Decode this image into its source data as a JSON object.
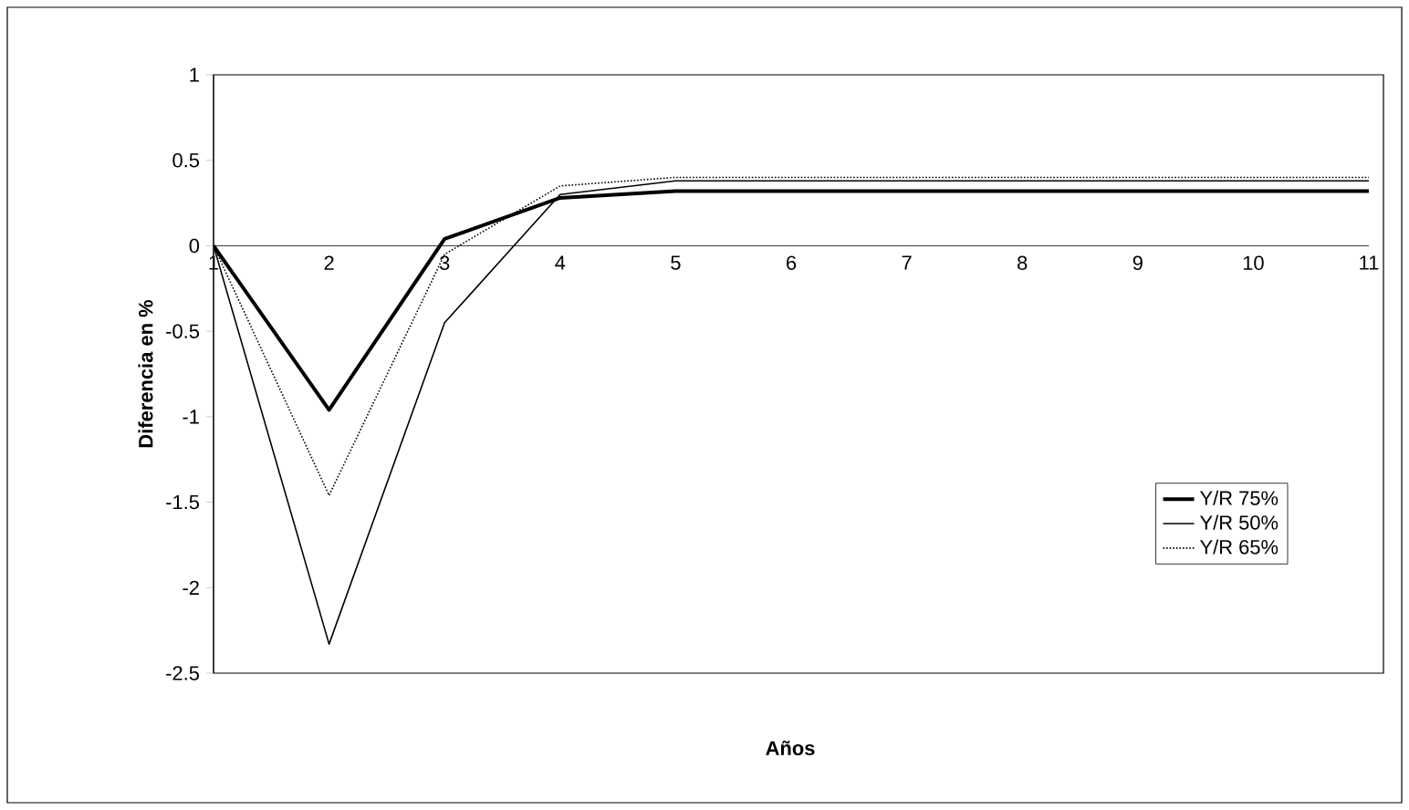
{
  "chart_data": {
    "type": "line",
    "xlabel": "Años",
    "ylabel": "Diferencia en %",
    "categories": [
      "1",
      "2",
      "3",
      "4",
      "5",
      "6",
      "7",
      "8",
      "9",
      "10",
      "11"
    ],
    "series": [
      {
        "name": "Y/R 75%",
        "color": "#000000",
        "line_style": "solid",
        "values": [
          0,
          -0.96,
          0.04,
          0.28,
          0.32,
          0.32,
          0.32,
          0.32,
          0.32,
          0.32,
          0.32
        ]
      },
      {
        "name": "Y/R 50%",
        "color": "#010101",
        "line_style": "solid",
        "values": [
          0,
          -2.33,
          -0.45,
          0.3,
          0.38,
          0.38,
          0.38,
          0.38,
          0.38,
          0.38,
          0.38
        ]
      },
      {
        "name": "Y/R 65%",
        "color": "#020202",
        "line_style": "dotted",
        "values": [
          0,
          -1.46,
          -0.05,
          0.35,
          0.4,
          0.4,
          0.4,
          0.4,
          0.4,
          0.4,
          0.4
        ]
      }
    ],
    "ylim": [
      -2.5,
      1
    ],
    "yticks": [
      -2.5,
      -2,
      -1.5,
      -1,
      -0.5,
      0,
      0.5,
      1
    ],
    "grid": false,
    "legend": "right",
    "marker": "none"
  }
}
